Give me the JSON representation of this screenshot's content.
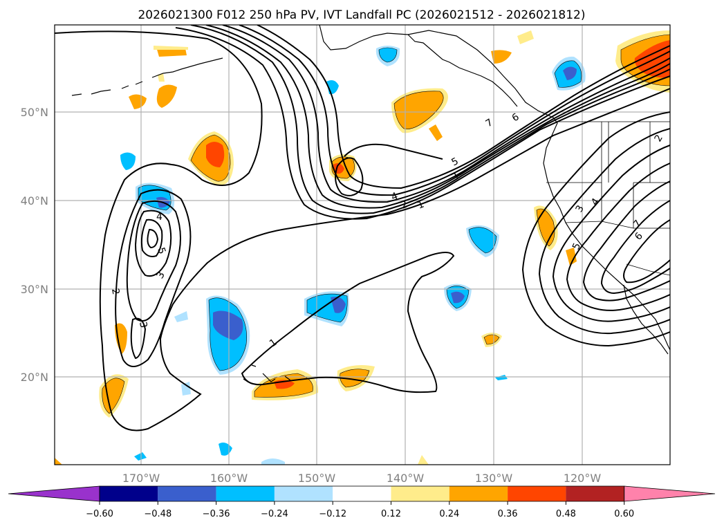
{
  "title": "2026021300 F012 250 hPa PV, IVT Landfall PC (2026021512 - 2026021812)",
  "map": {
    "lon_ticks": [
      "170°W",
      "160°W",
      "150°W",
      "140°W",
      "130°W",
      "120°W"
    ],
    "lat_ticks": [
      "50°N",
      "40°N",
      "30°N",
      "20°N"
    ],
    "contour_labels": {
      "c1a": "1",
      "c2a": "2",
      "c3a": "3",
      "c4a": "4",
      "c5a": "5",
      "c6a": "6",
      "c7a": "7",
      "w2": "2",
      "w3": "3",
      "w4": "4",
      "w5": "5",
      "w3b": "3",
      "s1": "1",
      "e3": "3",
      "e4": "4",
      "e5": "5",
      "e6": "6",
      "e7": "7",
      "e2": "2"
    }
  },
  "colorbar": {
    "ticks": [
      "−0.60",
      "−0.48",
      "−0.36",
      "−0.24",
      "−0.12",
      "0.12",
      "0.24",
      "0.36",
      "0.48",
      "0.60"
    ],
    "colors": [
      "#9932cc",
      "#00008b",
      "#3a5fcd",
      "#00bfff",
      "#b0e2ff",
      "#ffffff",
      "#ffec8b",
      "#ffa500",
      "#ff4500",
      "#b22222",
      "#ff82ab"
    ]
  }
}
